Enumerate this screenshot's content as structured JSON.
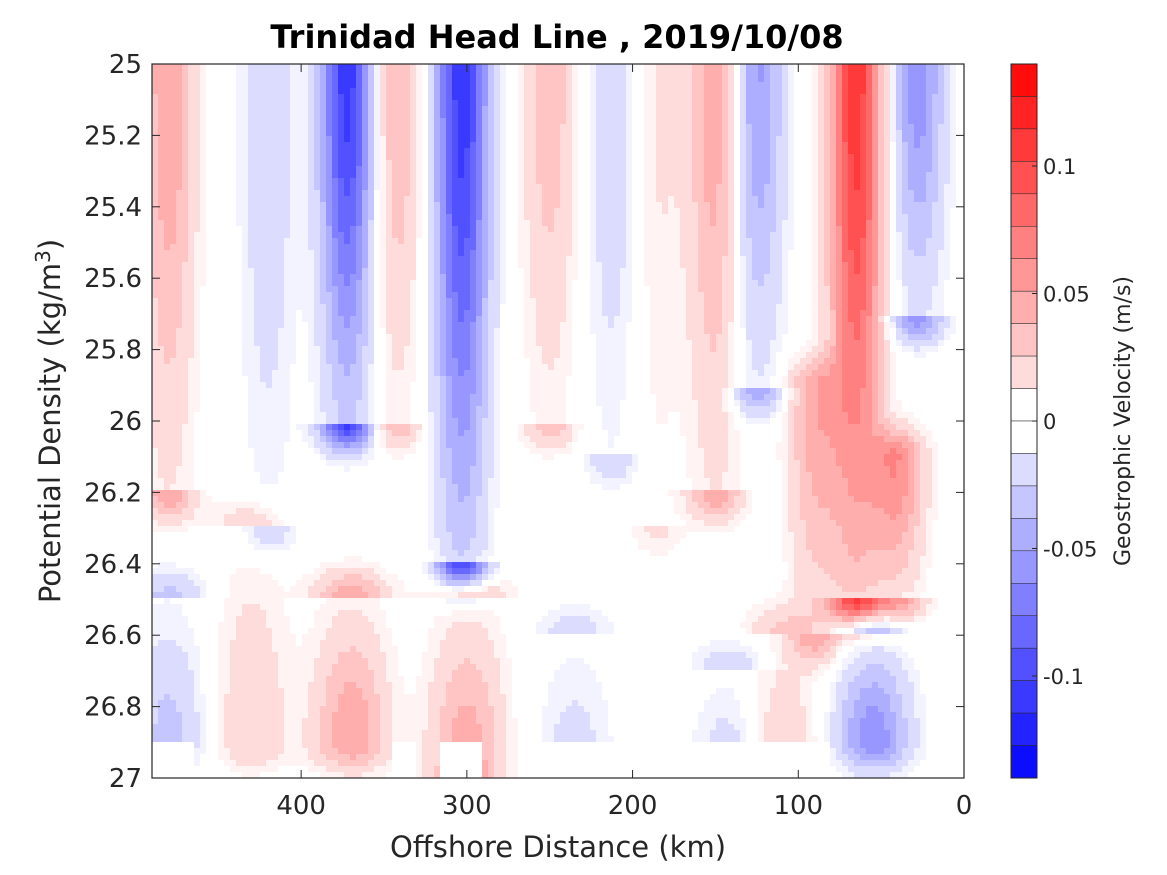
{
  "chart_data": {
    "type": "heatmap",
    "title": "Trinidad Head Line , 2019/10/08",
    "xlabel": "Offshore Distance (km)",
    "ylabel": {
      "main": "Potential Density (kg/m",
      "superscript": "3",
      "close": ")"
    },
    "xlim": [
      490,
      0
    ],
    "ylim": [
      25,
      27
    ],
    "x_reversed": true,
    "y_reversed": true,
    "x_ticks": [
      400,
      300,
      200,
      100,
      0
    ],
    "y_ticks": [
      "25",
      "25.2",
      "25.4",
      "25.6",
      "25.8",
      "26",
      "26.2",
      "26.4",
      "26.6",
      "26.8",
      "27"
    ],
    "colorbar": {
      "label": "Geostrophic Velocity (m/s)",
      "range": [
        -0.14,
        0.14
      ],
      "levels": 22,
      "ticks": [
        {
          "value": 0.1,
          "label": "0.1"
        },
        {
          "value": 0.05,
          "label": "0.05"
        },
        {
          "value": 0,
          "label": "0"
        },
        {
          "value": -0.05,
          "label": "-0.05"
        },
        {
          "value": -0.1,
          "label": "-0.1"
        }
      ],
      "colormap": "blue-white-red",
      "negative_color": "#0000ff",
      "positive_color": "#ff0000",
      "zero_color": "#ffffff"
    },
    "fields": [
      {
        "name": "jet",
        "x": 480,
        "top": 25.0,
        "bottom": 26.2,
        "peak": 0.05
      },
      {
        "name": "jet",
        "x": 420,
        "top": 25.0,
        "bottom": 26.3,
        "peak": -0.025
      },
      {
        "name": "jet",
        "x": 372,
        "top": 25.0,
        "bottom": 26.0,
        "peak": -0.11
      },
      {
        "name": "jet",
        "x": 343,
        "top": 25.0,
        "bottom": 26.0,
        "peak": 0.04
      },
      {
        "name": "jet",
        "x": 303,
        "top": 25.0,
        "bottom": 26.4,
        "peak": -0.11
      },
      {
        "name": "jet",
        "x": 250,
        "top": 25.0,
        "bottom": 26.0,
        "peak": 0.035
      },
      {
        "name": "jet",
        "x": 212,
        "top": 25.0,
        "bottom": 26.1,
        "peak": -0.025
      },
      {
        "name": "jet",
        "x": 185,
        "top": 25.0,
        "bottom": 26.3,
        "peak": 0.015
      },
      {
        "name": "jet",
        "x": 150,
        "top": 25.0,
        "bottom": 26.2,
        "peak": 0.05
      },
      {
        "name": "jet",
        "x": 125,
        "top": 25.0,
        "bottom": 25.9,
        "peak": -0.055
      },
      {
        "name": "jet",
        "x": 65,
        "top": 25.0,
        "bottom": 26.5,
        "peak": 0.11
      },
      {
        "name": "jet",
        "x": 90,
        "top": 25.9,
        "bottom": 26.6,
        "peak": 0.045
      },
      {
        "name": "jet",
        "x": 40,
        "top": 26.1,
        "bottom": 26.5,
        "peak": 0.06
      },
      {
        "name": "jet",
        "x": 28,
        "top": 25.0,
        "bottom": 25.7,
        "peak": -0.06
      },
      {
        "name": "deep",
        "x": 370,
        "top": 26.5,
        "bottom": 26.9,
        "peak": 0.05
      },
      {
        "name": "deep",
        "x": 430,
        "top": 26.3,
        "bottom": 26.9,
        "peak": 0.025
      },
      {
        "name": "deep",
        "x": 300,
        "top": 26.5,
        "bottom": 27.0,
        "peak": 0.05
      },
      {
        "name": "deep",
        "x": 480,
        "top": 26.5,
        "bottom": 26.9,
        "peak": -0.03
      },
      {
        "name": "deep",
        "x": 55,
        "top": 26.6,
        "bottom": 26.9,
        "peak": -0.06
      },
      {
        "name": "deep",
        "x": 235,
        "top": 26.6,
        "bottom": 27.0,
        "peak": -0.02
      },
      {
        "name": "deep",
        "x": 140,
        "top": 26.7,
        "bottom": 27.0,
        "peak": -0.025
      },
      {
        "name": "deep",
        "x": 110,
        "top": 26.6,
        "bottom": 27.0,
        "peak": 0.03
      }
    ],
    "mask_below": 26.9,
    "mask_gaps": [
      [
        490,
        465
      ],
      [
        345,
        330
      ],
      [
        315,
        290
      ],
      [
        270,
        85
      ]
    ]
  }
}
